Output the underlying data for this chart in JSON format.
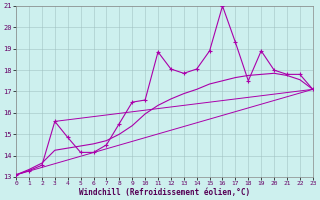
{
  "xlabel": "Windchill (Refroidissement éolien,°C)",
  "xlim": [
    0,
    23
  ],
  "ylim": [
    13,
    21
  ],
  "xticks": [
    0,
    1,
    2,
    3,
    4,
    5,
    6,
    7,
    8,
    9,
    10,
    11,
    12,
    13,
    14,
    15,
    16,
    17,
    18,
    19,
    20,
    21,
    22,
    23
  ],
  "yticks": [
    13,
    14,
    15,
    16,
    17,
    18,
    19,
    20,
    21
  ],
  "bg_color": "#cdf0ee",
  "line_color": "#aa00aa",
  "grid_color": "#aabbaa",
  "series1_x": [
    0,
    1,
    2,
    3,
    4,
    5,
    6,
    7,
    8,
    9,
    10,
    11,
    12,
    13,
    14,
    15,
    16,
    17,
    18,
    19,
    20,
    21,
    22,
    23
  ],
  "series1_y": [
    13.1,
    13.3,
    13.55,
    15.6,
    14.85,
    14.15,
    14.15,
    14.5,
    15.5,
    16.5,
    16.6,
    18.85,
    18.05,
    17.85,
    18.05,
    18.9,
    21.0,
    19.3,
    17.5,
    18.9,
    18.0,
    17.8,
    17.8,
    17.1
  ],
  "series2_x": [
    0,
    1,
    2,
    3,
    4,
    5,
    6,
    7,
    8,
    9,
    10,
    11,
    12,
    13,
    14,
    15,
    16,
    17,
    18,
    19,
    20,
    21,
    22,
    23
  ],
  "series2_y": [
    13.1,
    13.35,
    13.65,
    14.25,
    14.35,
    14.45,
    14.55,
    14.7,
    15.0,
    15.4,
    15.95,
    16.35,
    16.65,
    16.9,
    17.1,
    17.35,
    17.5,
    17.65,
    17.75,
    17.8,
    17.85,
    17.75,
    17.55,
    17.1
  ],
  "series3_x": [
    0,
    23
  ],
  "series3_y": [
    13.1,
    17.1
  ],
  "series4_x": [
    3,
    23
  ],
  "series4_y": [
    15.6,
    17.1
  ]
}
